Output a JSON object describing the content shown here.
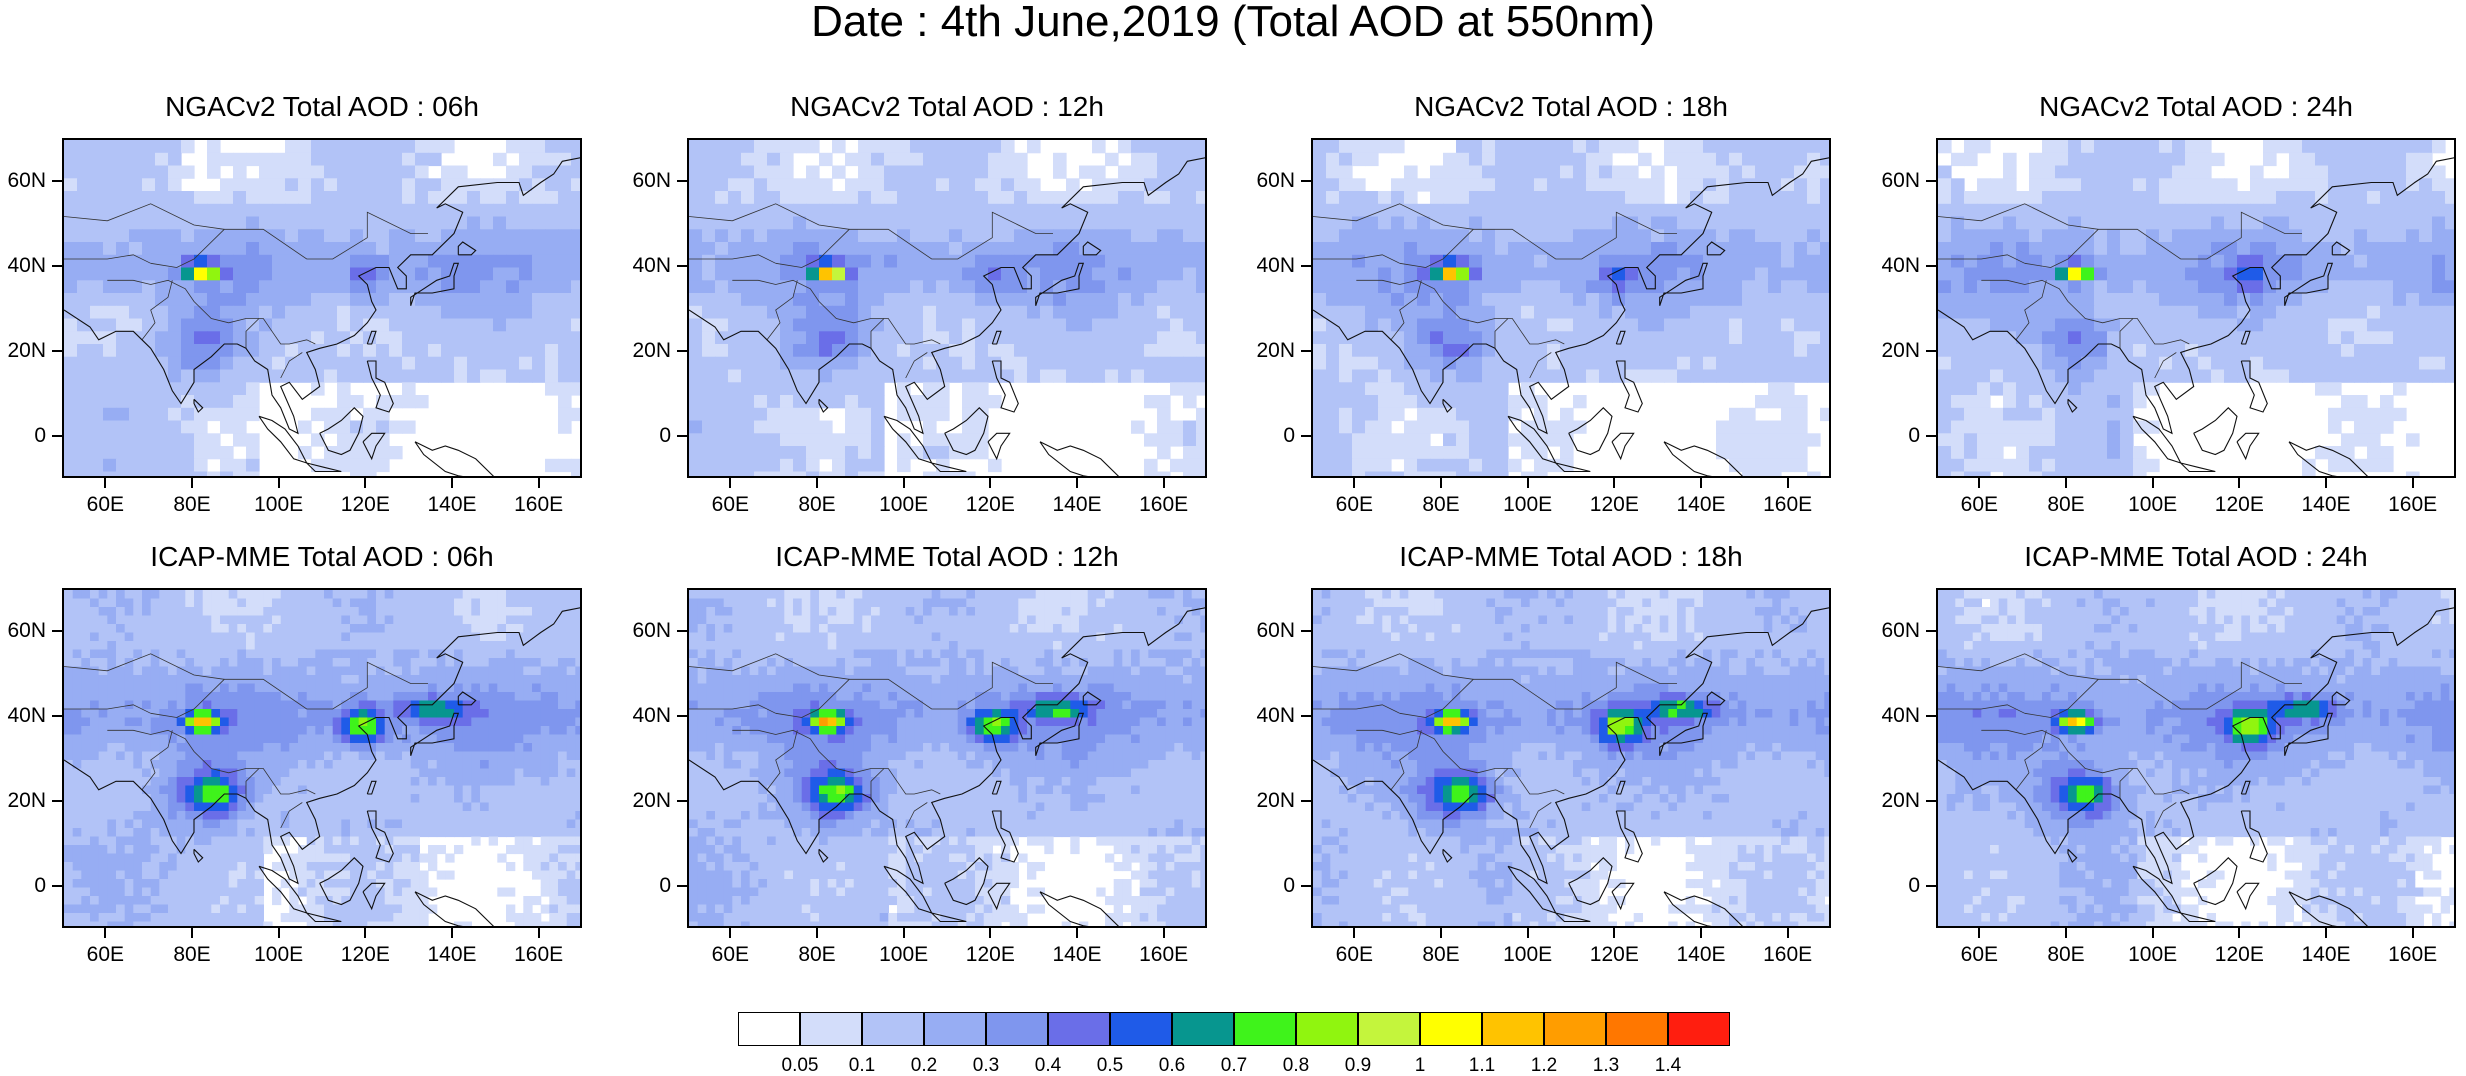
{
  "title": "Date : 4th June,2019 (Total AOD at 550nm)",
  "panels": [
    {
      "id": "ngac-06",
      "title": "NGACv2 Total AOD : 06h",
      "model": "NGACv2",
      "forecast_hour": "06h"
    },
    {
      "id": "ngac-12",
      "title": "NGACv2 Total AOD : 12h",
      "model": "NGACv2",
      "forecast_hour": "12h"
    },
    {
      "id": "ngac-18",
      "title": "NGACv2 Total AOD : 18h",
      "model": "NGACv2",
      "forecast_hour": "18h"
    },
    {
      "id": "ngac-24",
      "title": "NGACv2 Total AOD : 24h",
      "model": "NGACv2",
      "forecast_hour": "24h"
    },
    {
      "id": "icap-06",
      "title": "ICAP-MME Total AOD : 06h",
      "model": "ICAP-MME",
      "forecast_hour": "06h"
    },
    {
      "id": "icap-12",
      "title": "ICAP-MME Total AOD : 12h",
      "model": "ICAP-MME",
      "forecast_hour": "12h"
    },
    {
      "id": "icap-18",
      "title": "ICAP-MME Total AOD : 18h",
      "model": "ICAP-MME",
      "forecast_hour": "18h"
    },
    {
      "id": "icap-24",
      "title": "ICAP-MME Total AOD : 24h",
      "model": "ICAP-MME",
      "forecast_hour": "24h"
    }
  ],
  "axes": {
    "lat_ticks": [
      "60N",
      "40N",
      "20N",
      "0"
    ],
    "lat_values": [
      60,
      40,
      20,
      0
    ],
    "lon_ticks": [
      "60E",
      "80E",
      "100E",
      "120E",
      "140E",
      "160E"
    ],
    "lon_values": [
      60,
      80,
      100,
      120,
      140,
      160
    ],
    "lat_range": [
      -10,
      70
    ],
    "lon_range": [
      50,
      170
    ]
  },
  "colorbar": {
    "labels": [
      "0.05",
      "0.1",
      "0.2",
      "0.3",
      "0.4",
      "0.5",
      "0.6",
      "0.7",
      "0.8",
      "0.9",
      "1",
      "1.1",
      "1.2",
      "1.3",
      "1.4"
    ],
    "colors": [
      "#ffffff",
      "#d3ddfa",
      "#b2c3f7",
      "#97adf3",
      "#7f96ee",
      "#6a6ee8",
      "#1f5be8",
      "#07968f",
      "#3ff31b",
      "#90f50f",
      "#c4f53c",
      "#ffff00",
      "#ffc300",
      "#ff9d00",
      "#ff7700",
      "#ff1e0f"
    ]
  }
}
